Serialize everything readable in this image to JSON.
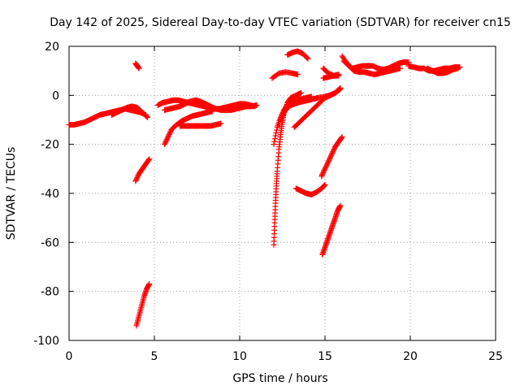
{
  "chart_data": {
    "type": "scatter",
    "title": "Day 142 of 2025, Sidereal Day-to-day VTEC variation (SDTVAR) for receiver cn15",
    "xlabel": "GPS time / hours",
    "ylabel": "SDTVAR / TECUs",
    "xlim": [
      0,
      25
    ],
    "ylim": [
      -100,
      20
    ],
    "xticks": [
      0,
      5,
      10,
      15,
      20,
      25
    ],
    "yticks": [
      -100,
      -80,
      -60,
      -40,
      -20,
      0,
      20
    ],
    "grid": true,
    "marker": "+",
    "color": "#ff0000",
    "series": [
      {
        "name": "main-band-a",
        "x": [
          0.0,
          0.3,
          0.6,
          0.9,
          1.2,
          1.5,
          1.8,
          2.1,
          2.4,
          2.7,
          3.0,
          3.3,
          3.6,
          3.9,
          4.2,
          4.5
        ],
        "y": [
          -12,
          -12,
          -11.5,
          -11,
          -10,
          -9,
          -8,
          -7.5,
          -7,
          -6.5,
          -6,
          -5.5,
          -6,
          -6.5,
          -7,
          -8
        ]
      },
      {
        "name": "main-band-b",
        "x": [
          2.5,
          2.8,
          3.1,
          3.4,
          3.7,
          4.0,
          4.3,
          4.6
        ],
        "y": [
          -8,
          -7,
          -6,
          -5,
          -4.5,
          -5,
          -7,
          -9
        ]
      },
      {
        "name": "main-band-c",
        "x": [
          5.2,
          5.5,
          5.8,
          6.1,
          6.4,
          6.7,
          7.0,
          7.3,
          7.6,
          7.9,
          8.2,
          8.5,
          8.8,
          9.1,
          9.4,
          9.7,
          10.0,
          10.3,
          10.6,
          10.9
        ],
        "y": [
          -4,
          -3,
          -2.5,
          -2,
          -2,
          -2.5,
          -3,
          -3.5,
          -4,
          -4.5,
          -5,
          -5.5,
          -5.5,
          -5,
          -4.5,
          -4,
          -3.5,
          -3.5,
          -4,
          -4.5
        ]
      },
      {
        "name": "main-band-d",
        "x": [
          5.6,
          5.9,
          6.2,
          6.5,
          6.8,
          7.1,
          7.4,
          7.7,
          8.0,
          8.3,
          8.6,
          8.9,
          9.2,
          9.5,
          9.8,
          10.1,
          10.4,
          10.7,
          11.0
        ],
        "y": [
          -6,
          -5.5,
          -5,
          -4.5,
          -3.5,
          -2.5,
          -2,
          -2.5,
          -3.5,
          -4.5,
          -5.5,
          -6,
          -6,
          -6,
          -5.5,
          -5,
          -4.5,
          -4.5,
          -4
        ]
      },
      {
        "name": "rise-6h",
        "x": [
          5.6,
          5.8,
          6.0,
          6.3,
          6.6,
          6.9,
          7.2,
          7.5,
          7.8,
          8.1,
          8.4
        ],
        "y": [
          -20,
          -17,
          -14,
          -12,
          -10.5,
          -9.5,
          -8.5,
          -8,
          -7.5,
          -7,
          -6.5
        ]
      },
      {
        "name": "flat-7h",
        "x": [
          6.5,
          6.8,
          7.1,
          7.4,
          7.7,
          8.0,
          8.3,
          8.6,
          8.9
        ],
        "y": [
          -12.5,
          -12.5,
          -12.5,
          -12.5,
          -12.5,
          -12.5,
          -12.5,
          -12,
          -11.5
        ]
      },
      {
        "name": "blob-4h",
        "x": [
          3.9,
          4.0,
          4.1
        ],
        "y": [
          13,
          12,
          11
        ]
      },
      {
        "name": "rise-4h",
        "x": [
          3.9,
          4.1,
          4.3,
          4.5,
          4.7
        ],
        "y": [
          -35,
          -32,
          -30,
          -28,
          -26
        ]
      },
      {
        "name": "rise-4h-deep",
        "x": [
          3.95,
          4.1,
          4.25,
          4.4,
          4.55,
          4.7
        ],
        "y": [
          -94,
          -90,
          -86,
          -82,
          -79,
          -77
        ]
      },
      {
        "name": "rise-12h-a",
        "x": [
          12.0,
          12.2,
          12.4,
          12.6,
          12.8,
          13.0,
          13.3,
          13.6,
          13.9,
          14.2
        ],
        "y": [
          -20,
          -13,
          -9,
          -6,
          -4,
          -3,
          -2,
          -1.5,
          -1,
          -0.5
        ]
      },
      {
        "name": "rise-12h-b",
        "x": [
          12.0,
          12.05,
          12.1,
          12.15,
          12.2,
          12.3,
          12.4,
          12.5,
          12.6,
          12.8,
          13.0,
          13.3,
          13.6
        ],
        "y": [
          -61,
          -52,
          -44,
          -37,
          -31,
          -22,
          -16,
          -11,
          -7,
          -3,
          -1,
          0,
          1
        ]
      },
      {
        "name": "rise-12h-c",
        "x": [
          12.4,
          12.6,
          12.8,
          13.0,
          13.2,
          13.4,
          13.7,
          14.0,
          14.3,
          14.6,
          15.0,
          15.3,
          15.6,
          15.9
        ],
        "y": [
          -10,
          -7,
          -5,
          -4,
          -3.5,
          -3,
          -2.5,
          -2,
          -1.5,
          -1,
          -0.5,
          0,
          1,
          2.5
        ]
      },
      {
        "name": "rise-13h",
        "x": [
          13.2,
          13.5,
          13.8,
          14.1,
          14.4,
          14.7,
          15.0,
          15.3,
          15.6,
          15.9
        ],
        "y": [
          -13,
          -11,
          -9,
          -7,
          -5,
          -3,
          -1,
          0,
          1,
          3
        ]
      },
      {
        "name": "blob-12h",
        "x": [
          11.9,
          12.3,
          12.7,
          13.1,
          13.4
        ],
        "y": [
          7,
          9,
          9.5,
          9,
          8.5
        ]
      },
      {
        "name": "arc-13h",
        "x": [
          12.8,
          13.1,
          13.4,
          13.7,
          14.0
        ],
        "y": [
          16.5,
          17.5,
          18,
          17,
          15
        ]
      },
      {
        "name": "dip-14h",
        "x": [
          13.3,
          13.6,
          13.9,
          14.2,
          14.5,
          14.8,
          15.0
        ],
        "y": [
          -38,
          -39,
          -40,
          -40.5,
          -39.5,
          -38,
          -36.5
        ]
      },
      {
        "name": "rise-15h-a",
        "x": [
          14.8,
          15.0,
          15.2,
          15.4,
          15.6,
          15.8,
          16.0
        ],
        "y": [
          -33,
          -30,
          -27,
          -24,
          -21,
          -19,
          -17
        ]
      },
      {
        "name": "rise-15h-b",
        "x": [
          14.85,
          15.0,
          15.15,
          15.3,
          15.45,
          15.6,
          15.75,
          15.9
        ],
        "y": [
          -65,
          -62,
          -59,
          -56,
          -53,
          -50,
          -47,
          -45
        ]
      },
      {
        "name": "band-15h",
        "x": [
          14.9,
          15.2,
          15.5,
          15.8
        ],
        "y": [
          11,
          9,
          8,
          8
        ]
      },
      {
        "name": "band-15h-low",
        "x": [
          14.9,
          15.2,
          15.5,
          15.8
        ],
        "y": [
          7,
          7.5,
          8,
          8.5
        ]
      },
      {
        "name": "band-16h-a",
        "x": [
          16.0,
          16.3,
          16.6,
          16.9,
          17.2,
          17.5,
          17.8,
          18.1,
          18.4,
          18.7,
          19.0,
          19.3,
          19.6,
          19.9
        ],
        "y": [
          16,
          13,
          11,
          11.5,
          12,
          12,
          12,
          11,
          10.5,
          11,
          12,
          13,
          13.5,
          13.5
        ]
      },
      {
        "name": "band-16h-b",
        "x": [
          16.1,
          16.4,
          16.7,
          17.0,
          17.3,
          17.6,
          17.9,
          18.2,
          18.5,
          18.8,
          19.1,
          19.4
        ],
        "y": [
          14,
          12,
          10,
          9.5,
          9.5,
          9,
          8.5,
          9,
          9.5,
          10,
          10.5,
          11
        ]
      },
      {
        "name": "band-20h",
        "x": [
          19.9,
          20.2,
          20.5,
          20.8,
          21.1,
          21.4,
          21.7,
          22.0,
          22.3,
          22.6,
          22.9
        ],
        "y": [
          12,
          11.5,
          11,
          11,
          10,
          10,
          10.5,
          11,
          11,
          11.5,
          11.5
        ]
      },
      {
        "name": "band-20h-b",
        "x": [
          21.0,
          21.3,
          21.6,
          21.9,
          22.2,
          22.5,
          22.8
        ],
        "y": [
          11,
          10,
          9,
          9,
          9.5,
          10.5,
          11
        ]
      }
    ]
  }
}
